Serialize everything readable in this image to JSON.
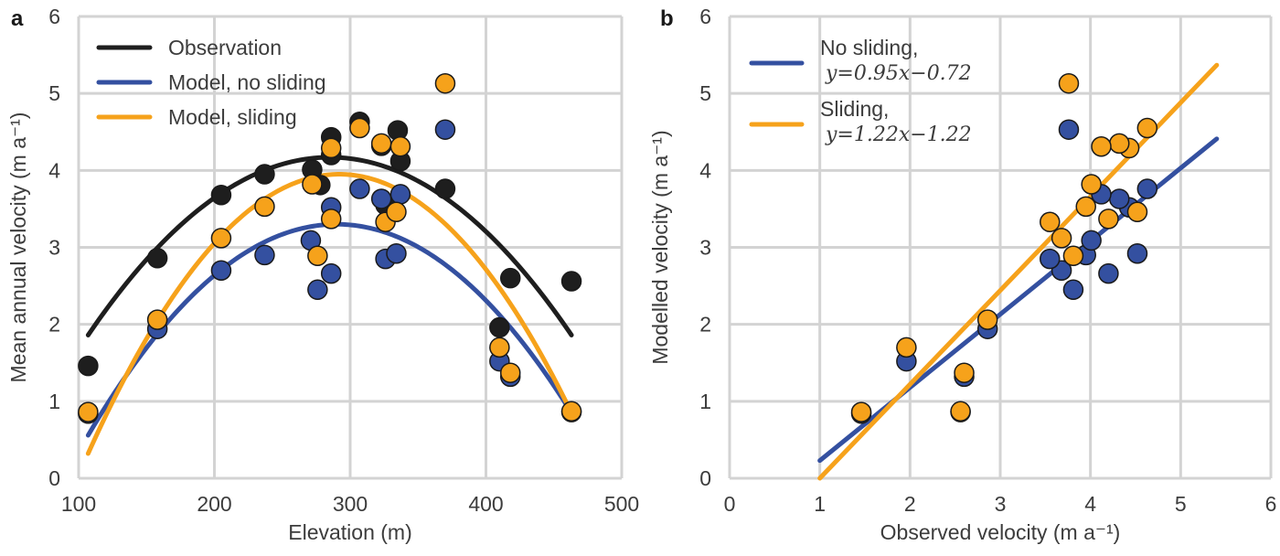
{
  "chart_data": [
    {
      "panel": "a",
      "type": "scatter",
      "xlabel": "Elevation (m)",
      "ylabel": "Mean annual velocity (m a⁻¹)",
      "xlim": [
        100,
        500
      ],
      "ylim": [
        0,
        6
      ],
      "xticks": [
        "100",
        "200",
        "300",
        "400",
        "500"
      ],
      "yticks": [
        "0",
        "1",
        "2",
        "3",
        "4",
        "5",
        "6"
      ],
      "grid": true,
      "legend_position": "top-left",
      "colors": {
        "observation": "#1e1e1e",
        "no_sliding": "#3450a0",
        "sliding": "#f6a21b"
      },
      "legend": [
        {
          "key": "observation",
          "label": "Observation"
        },
        {
          "key": "no_sliding",
          "label": "Model, no sliding"
        },
        {
          "key": "sliding",
          "label": "Model, sliding"
        }
      ],
      "series": [
        {
          "name": "Observation",
          "key": "observation",
          "points": [
            [
              107,
              1.46
            ],
            [
              158,
              2.86
            ],
            [
              205,
              3.68
            ],
            [
              237,
              3.95
            ],
            [
              272,
              4.01
            ],
            [
              278,
              3.81
            ],
            [
              286,
              4.43
            ],
            [
              286,
              4.2
            ],
            [
              307,
              4.63
            ],
            [
              323,
              4.32
            ],
            [
              326,
              3.55
            ],
            [
              335,
              4.52
            ],
            [
              337,
              4.12
            ],
            [
              370,
              3.76
            ],
            [
              410,
              1.96
            ],
            [
              418,
              2.6
            ],
            [
              463,
              2.56
            ]
          ],
          "fit": {
            "x_range": [
              107,
              463
            ],
            "vertex": [
              285,
              4.17
            ],
            "end_value": 1.86
          }
        },
        {
          "name": "Model, no sliding",
          "key": "no_sliding",
          "points": [
            [
              107,
              0.84
            ],
            [
              158,
              1.94
            ],
            [
              205,
              2.7
            ],
            [
              237,
              2.9
            ],
            [
              271,
              3.09
            ],
            [
              276,
              2.45
            ],
            [
              286,
              3.52
            ],
            [
              286,
              2.66
            ],
            [
              307,
              3.76
            ],
            [
              323,
              3.63
            ],
            [
              326,
              2.85
            ],
            [
              334,
              2.92
            ],
            [
              337,
              3.69
            ],
            [
              370,
              4.53
            ],
            [
              410,
              1.52
            ],
            [
              418,
              1.32
            ],
            [
              463,
              0.86
            ]
          ],
          "fit": {
            "x_range": [
              107,
              463
            ],
            "vertex": [
              290,
              3.3
            ],
            "end_value": 0.85
          }
        },
        {
          "name": "Model, sliding",
          "key": "sliding",
          "points": [
            [
              107,
              0.86
            ],
            [
              158,
              2.06
            ],
            [
              205,
              3.12
            ],
            [
              237,
              3.53
            ],
            [
              272,
              3.82
            ],
            [
              276,
              2.89
            ],
            [
              286,
              4.29
            ],
            [
              286,
              3.37
            ],
            [
              307,
              4.55
            ],
            [
              323,
              4.35
            ],
            [
              326,
              3.33
            ],
            [
              334,
              3.46
            ],
            [
              337,
              4.31
            ],
            [
              370,
              5.13
            ],
            [
              410,
              1.7
            ],
            [
              418,
              1.37
            ],
            [
              463,
              0.87
            ]
          ],
          "fit": {
            "x_range": [
              107,
              463
            ],
            "vertex": [
              292,
              3.95
            ],
            "end_value": 0.85
          }
        }
      ]
    },
    {
      "panel": "b",
      "type": "scatter",
      "xlabel": "Observed velocity (m a⁻¹)",
      "ylabel": "Modelled velocity (m a⁻¹)",
      "xlim": [
        0,
        6
      ],
      "ylim": [
        0,
        6
      ],
      "xticks": [
        "0",
        "1",
        "2",
        "3",
        "4",
        "5",
        "6"
      ],
      "yticks": [
        "0",
        "1",
        "2",
        "3",
        "4",
        "5",
        "6"
      ],
      "grid": true,
      "legend_position": "top-left",
      "legend": [
        {
          "key": "no_sliding",
          "label": "No sliding,",
          "equation": "y=0.95x−0.72"
        },
        {
          "key": "sliding",
          "label": "Sliding,",
          "equation": "y=1.22x−1.22"
        }
      ],
      "series": [
        {
          "name": "No sliding",
          "key": "no_sliding",
          "points": [
            [
              1.46,
              0.84
            ],
            [
              2.86,
              1.94
            ],
            [
              3.68,
              2.7
            ],
            [
              3.95,
              2.9
            ],
            [
              4.01,
              3.09
            ],
            [
              3.81,
              2.45
            ],
            [
              4.43,
              3.52
            ],
            [
              4.2,
              2.66
            ],
            [
              4.63,
              3.76
            ],
            [
              4.32,
              3.63
            ],
            [
              3.55,
              2.85
            ],
            [
              4.52,
              2.92
            ],
            [
              4.12,
              3.69
            ],
            [
              3.76,
              4.53
            ],
            [
              1.96,
              1.52
            ],
            [
              2.6,
              1.32
            ],
            [
              2.56,
              0.86
            ]
          ],
          "fit": {
            "slope": 0.95,
            "intercept": -0.72,
            "x_range": [
              1.0,
              5.4
            ]
          }
        },
        {
          "name": "Sliding",
          "key": "sliding",
          "points": [
            [
              1.46,
              0.86
            ],
            [
              2.86,
              2.06
            ],
            [
              3.68,
              3.12
            ],
            [
              3.95,
              3.53
            ],
            [
              4.01,
              3.82
            ],
            [
              3.81,
              2.89
            ],
            [
              4.43,
              4.29
            ],
            [
              4.2,
              3.37
            ],
            [
              4.63,
              4.55
            ],
            [
              4.32,
              4.35
            ],
            [
              3.55,
              3.33
            ],
            [
              4.52,
              3.46
            ],
            [
              4.12,
              4.31
            ],
            [
              3.76,
              5.13
            ],
            [
              1.96,
              1.7
            ],
            [
              2.6,
              1.37
            ],
            [
              2.56,
              0.87
            ]
          ],
          "fit": {
            "slope": 1.22,
            "intercept": -1.22,
            "x_range": [
              1.0,
              5.4
            ]
          }
        }
      ]
    }
  ]
}
